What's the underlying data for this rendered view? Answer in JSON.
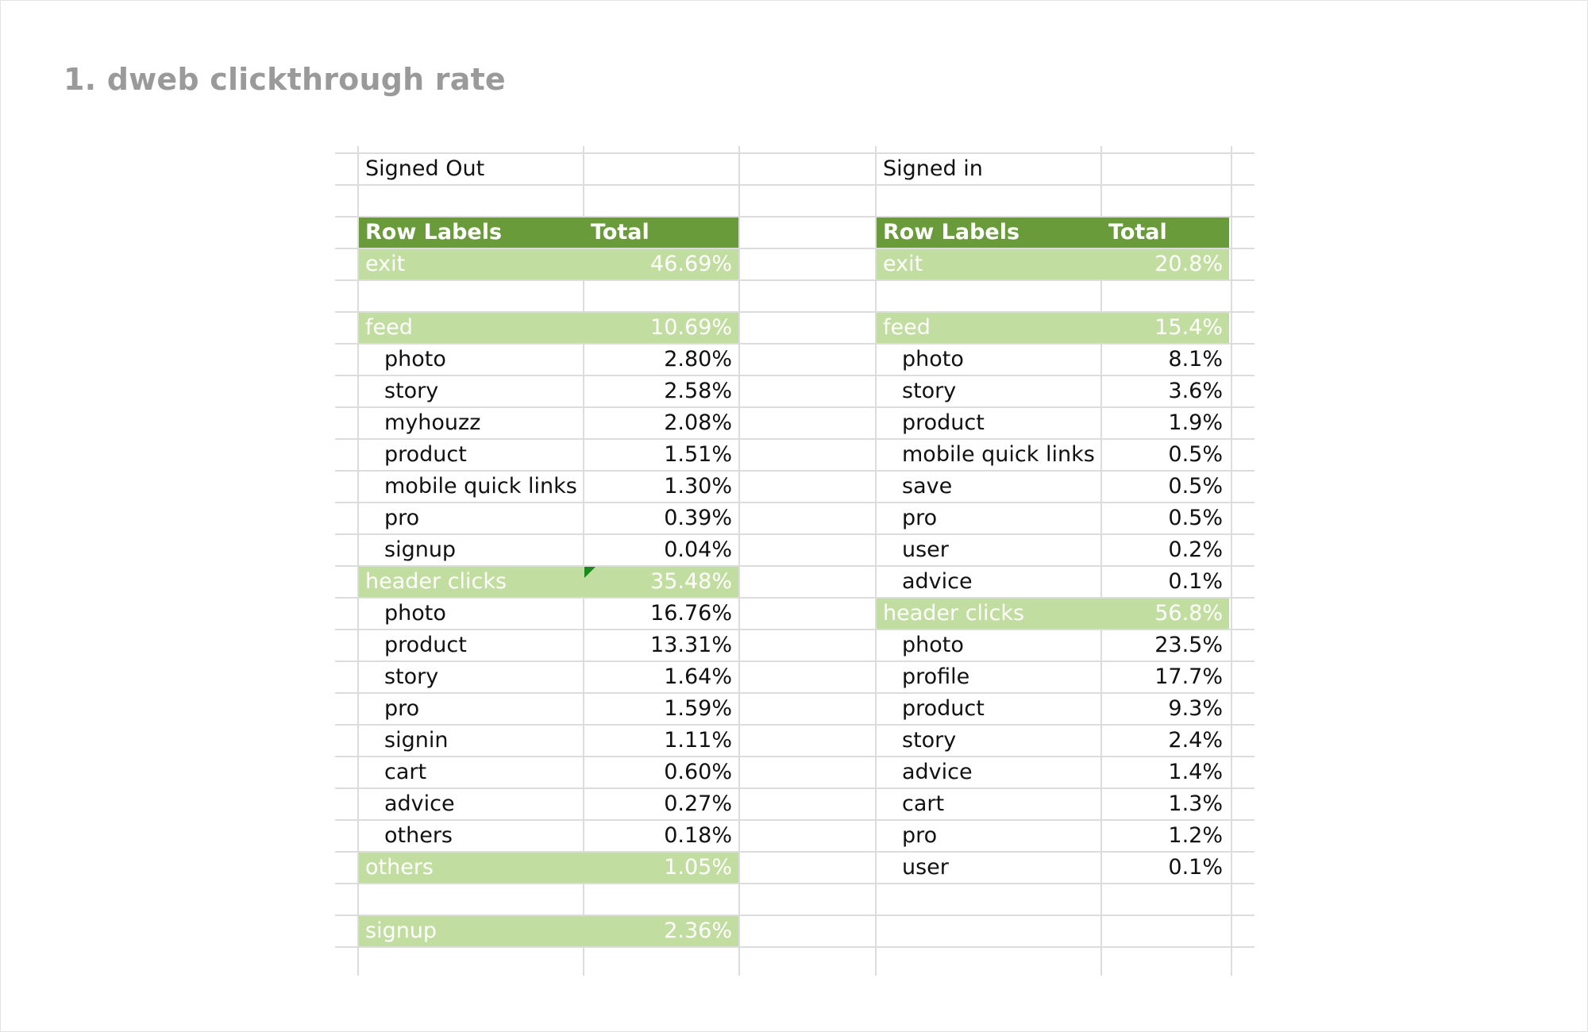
{
  "section": {
    "title": "1. dweb clickthrough rate"
  },
  "colors": {
    "header_band": "#6a9b3a",
    "group_band": "#c1dd9f",
    "gridline": "#dcdcdc"
  },
  "signed_out": {
    "title": "Signed Out",
    "header": {
      "label": "Row Labels",
      "value": "Total"
    },
    "rows": [
      {
        "row": 3,
        "label": "exit",
        "value": "46.69%",
        "kind": "group"
      },
      {
        "row": 5,
        "label": "feed",
        "value": "10.69%",
        "kind": "group"
      },
      {
        "row": 6,
        "label": "photo",
        "value": "2.80%",
        "kind": "item"
      },
      {
        "row": 7,
        "label": "story",
        "value": "2.58%",
        "kind": "item"
      },
      {
        "row": 8,
        "label": "myhouzz",
        "value": "2.08%",
        "kind": "item"
      },
      {
        "row": 9,
        "label": "product",
        "value": "1.51%",
        "kind": "item"
      },
      {
        "row": 10,
        "label": "mobile quick links",
        "value": "1.30%",
        "kind": "item"
      },
      {
        "row": 11,
        "label": "pro",
        "value": "0.39%",
        "kind": "item"
      },
      {
        "row": 12,
        "label": "signup",
        "value": "0.04%",
        "kind": "item"
      },
      {
        "row": 13,
        "label": "header clicks",
        "value": "35.48%",
        "kind": "group"
      },
      {
        "row": 14,
        "label": "photo",
        "value": "16.76%",
        "kind": "item"
      },
      {
        "row": 15,
        "label": "product",
        "value": "13.31%",
        "kind": "item"
      },
      {
        "row": 16,
        "label": "story",
        "value": "1.64%",
        "kind": "item"
      },
      {
        "row": 17,
        "label": "pro",
        "value": "1.59%",
        "kind": "item"
      },
      {
        "row": 18,
        "label": "signin",
        "value": "1.11%",
        "kind": "item"
      },
      {
        "row": 19,
        "label": "cart",
        "value": "0.60%",
        "kind": "item"
      },
      {
        "row": 20,
        "label": "advice",
        "value": "0.27%",
        "kind": "item"
      },
      {
        "row": 21,
        "label": "others",
        "value": "0.18%",
        "kind": "item"
      },
      {
        "row": 22,
        "label": "others",
        "value": "1.05%",
        "kind": "group"
      },
      {
        "row": 24,
        "label": "signup",
        "value": "2.36%",
        "kind": "group"
      }
    ]
  },
  "signed_in": {
    "title": "Signed in",
    "header": {
      "label": "Row Labels",
      "value": "Total"
    },
    "rows": [
      {
        "row": 3,
        "label": "exit",
        "value": "20.8%",
        "kind": "group"
      },
      {
        "row": 5,
        "label": "feed",
        "value": "15.4%",
        "kind": "group"
      },
      {
        "row": 6,
        "label": "photo",
        "value": "8.1%",
        "kind": "item"
      },
      {
        "row": 7,
        "label": "story",
        "value": "3.6%",
        "kind": "item"
      },
      {
        "row": 8,
        "label": "product",
        "value": "1.9%",
        "kind": "item"
      },
      {
        "row": 9,
        "label": "mobile quick links",
        "value": "0.5%",
        "kind": "item"
      },
      {
        "row": 10,
        "label": "save",
        "value": "0.5%",
        "kind": "item"
      },
      {
        "row": 11,
        "label": "pro",
        "value": "0.5%",
        "kind": "item"
      },
      {
        "row": 12,
        "label": "user",
        "value": "0.2%",
        "kind": "item"
      },
      {
        "row": 13,
        "label": "advice",
        "value": "0.1%",
        "kind": "item"
      },
      {
        "row": 14,
        "label": "header clicks",
        "value": "56.8%",
        "kind": "group"
      },
      {
        "row": 15,
        "label": "photo",
        "value": "23.5%",
        "kind": "item"
      },
      {
        "row": 16,
        "label": "profile",
        "value": "17.7%",
        "kind": "item"
      },
      {
        "row": 17,
        "label": "product",
        "value": "9.3%",
        "kind": "item"
      },
      {
        "row": 18,
        "label": "story",
        "value": "2.4%",
        "kind": "item"
      },
      {
        "row": 19,
        "label": "advice",
        "value": "1.4%",
        "kind": "item"
      },
      {
        "row": 20,
        "label": "cart",
        "value": "1.3%",
        "kind": "item"
      },
      {
        "row": 21,
        "label": "pro",
        "value": "1.2%",
        "kind": "item"
      },
      {
        "row": 22,
        "label": "user",
        "value": "0.1%",
        "kind": "item"
      }
    ]
  }
}
